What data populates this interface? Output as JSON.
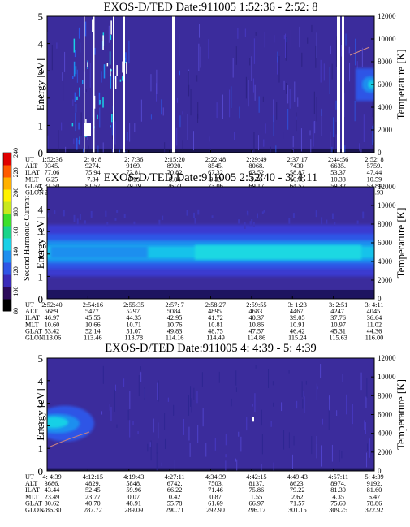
{
  "colorbar": {
    "label": "Second Harmonic Current",
    "ticks": [
      80,
      100,
      120,
      140,
      160,
      180,
      200,
      220,
      240
    ],
    "colors": [
      "#000000",
      "#2c0a5a",
      "#3a2ab8",
      "#2f55e6",
      "#1e8fef",
      "#18d0e6",
      "#18d489",
      "#3ce02a",
      "#c8e81c",
      "#fff200",
      "#ffb000",
      "#ff5a00",
      "#e00000"
    ]
  },
  "chart_data": [
    {
      "type": "heatmap",
      "title": "EXOS-D/TED   Date:911005   1:52:36 - 2:52: 8",
      "ylabel": "Energy [eV]",
      "y2label": "Temperature [K]",
      "ylim": [
        0,
        5
      ],
      "y2lim": [
        0,
        12000
      ],
      "yticks": [
        0,
        1,
        2,
        3,
        4,
        5
      ],
      "y2ticks": [
        0,
        2000,
        4000,
        6000,
        8000,
        10000,
        12000
      ],
      "table_rows": [
        {
          "label": "UT",
          "values": [
            "1:52:36",
            "2: 0: 8",
            "2: 7:36",
            "2:15:20",
            "2:22:48",
            "2:29:49",
            "2:37:17",
            "2:44:56",
            "2:52: 8"
          ]
        },
        {
          "label": "ALT",
          "values": [
            "9345.",
            "9274.",
            "9169.",
            "8920.",
            "8545.",
            "8068.",
            "7430.",
            "6635.",
            "5759."
          ]
        },
        {
          "label": "ILAT",
          "values": [
            "77.06",
            "75.94",
            "73.81",
            "70.82",
            "67.32",
            "63.52",
            "58.87",
            "53.37",
            "47.44"
          ]
        },
        {
          "label": "MLT",
          "values": [
            "6.25",
            "7.34",
            "8.18",
            "8.84",
            "9.33",
            "9.70",
            "10.03",
            "10.33",
            "10.59"
          ]
        },
        {
          "label": "GLAT",
          "values": [
            "81.50",
            "81.57",
            "79.79",
            "76.71",
            "73.06",
            "69.17",
            "64.57",
            "59.32",
            "53.84"
          ]
        },
        {
          "label": "GLON",
          "values": [
            "29.42",
            "56.64",
            "78.53",
            "92.49",
            "100.43",
            "105.15",
            "108.54",
            "111.04",
            "112.93"
          ]
        }
      ]
    },
    {
      "type": "heatmap",
      "title": "EXOS-D/TED   Date:911005   2:52:40 - 3: 4:11",
      "ylabel": "Energy [eV]",
      "y2label": "Temperature [K]",
      "ylim": [
        0,
        5
      ],
      "y2lim": [
        0,
        12000
      ],
      "yticks": [
        0,
        1,
        2,
        3,
        4,
        5
      ],
      "y2ticks": [
        0,
        2000,
        4000,
        6000,
        8000,
        10000,
        12000
      ],
      "table_rows": [
        {
          "label": "UT",
          "values": [
            "2:52:40",
            "2:54:16",
            "2:55:35",
            "2:57: 7",
            "2:58:27",
            "2:59:55",
            "3: 1:23",
            "3: 2:51",
            "3: 4:11"
          ]
        },
        {
          "label": "ALT",
          "values": [
            "5689.",
            "5477.",
            "5297.",
            "5084.",
            "4895.",
            "4683.",
            "4467.",
            "4247.",
            "4045."
          ]
        },
        {
          "label": "ILAT",
          "values": [
            "46.97",
            "45.55",
            "44.35",
            "42.95",
            "41.72",
            "40.37",
            "39.05",
            "37.76",
            "36.64"
          ]
        },
        {
          "label": "MLT",
          "values": [
            "10.60",
            "10.66",
            "10.71",
            "10.76",
            "10.81",
            "10.86",
            "10.91",
            "10.97",
            "11.02"
          ]
        },
        {
          "label": "GLAT",
          "values": [
            "53.42",
            "52.14",
            "51.07",
            "49.83",
            "48.75",
            "47.57",
            "46.42",
            "45.31",
            "44.36"
          ]
        },
        {
          "label": "GLON",
          "values": [
            "113.06",
            "113.46",
            "113.78",
            "114.16",
            "114.49",
            "114.86",
            "115.24",
            "115.63",
            "116.00"
          ]
        }
      ]
    },
    {
      "type": "heatmap",
      "title": "EXOS-D/TED   Date:911005   4: 4:39 - 5: 4:39",
      "ylabel": "Energy [eV]",
      "y2label": "Temperature [K]",
      "ylim": [
        0,
        5
      ],
      "y2lim": [
        0,
        12000
      ],
      "yticks": [
        0,
        1,
        2,
        3,
        4,
        5
      ],
      "y2ticks": [
        0,
        2000,
        4000,
        6000,
        8000,
        10000,
        12000
      ],
      "table_rows": [
        {
          "label": "UT",
          "values": [
            "4: 4:39",
            "4:12:15",
            "4:19:43",
            "4:27:11",
            "4:34:39",
            "4:42:15",
            "4:49:43",
            "4:57:11",
            "5: 4:39"
          ]
        },
        {
          "label": "ALT",
          "values": [
            "3686.",
            "4829.",
            "5848.",
            "6742.",
            "7503.",
            "8137.",
            "8623.",
            "8974.",
            "9192."
          ]
        },
        {
          "label": "ILAT",
          "values": [
            "43.44",
            "52.45",
            "59.96",
            "66.22",
            "71.46",
            "75.86",
            "79.22",
            "81.30",
            "81.60"
          ]
        },
        {
          "label": "MLT",
          "values": [
            "23.49",
            "23.77",
            "0.07",
            "0.42",
            "0.87",
            "1.55",
            "2.62",
            "4.35",
            "6.47"
          ]
        },
        {
          "label": "GLAT",
          "values": [
            "30.62",
            "40.70",
            "48.91",
            "55.78",
            "61.69",
            "66.97",
            "71.57",
            "75.60",
            "78.86"
          ]
        },
        {
          "label": "GLON",
          "values": [
            "286.30",
            "287.72",
            "289.09",
            "290.71",
            "292.90",
            "296.17",
            "301.15",
            "309.25",
            "322.92"
          ]
        }
      ]
    }
  ]
}
